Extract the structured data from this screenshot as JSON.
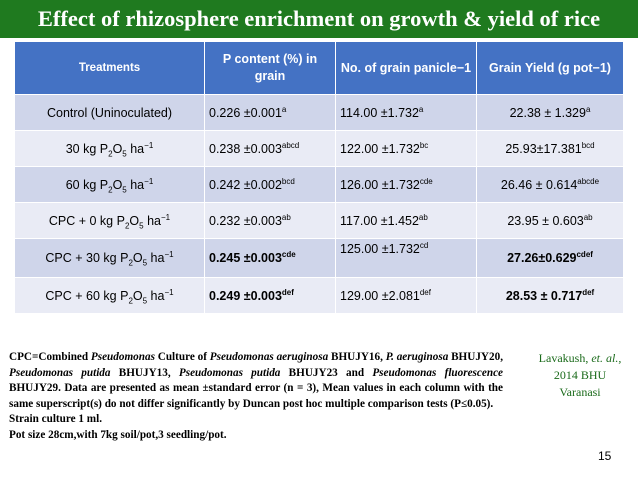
{
  "title": "Effect of rhizosphere enrichment on growth & yield of rice",
  "table": {
    "headers": [
      "Treatments",
      "P content (%) in grain",
      "No. of grain panicle−1",
      "Grain Yield (g pot−1)"
    ],
    "rows": [
      {
        "treatment_pre": "Control (Uninoculated)",
        "p_val": "0.226 ±0.001",
        "p_sup": "a",
        "grain_val": "114.00 ±1.732",
        "grain_sup": "a",
        "yield_val": "22.38 ± 1.329",
        "yield_sup": "a"
      },
      {
        "treatment_pre": "30 kg P",
        "p_val": "0.238 ±0.003",
        "p_sup": "abcd",
        "grain_val": "122.00 ±1.732",
        "grain_sup": "bc",
        "yield_val": "25.93±17.381",
        "yield_sup": "bcd"
      },
      {
        "treatment_pre": "60 kg P",
        "p_val": "0.242 ±0.002",
        "p_sup": "bcd",
        "grain_val": "126.00 ±1.732",
        "grain_sup": "cde",
        "yield_val": "26.46 ± 0.614",
        "yield_sup": "abcde"
      },
      {
        "treatment_pre": "CPC + 0 kg P",
        "p_val": "0.232 ±0.003",
        "p_sup": "ab",
        "grain_val": "117.00 ±1.452",
        "grain_sup": "ab",
        "yield_val": "23.95 ± 0.603",
        "yield_sup": "ab"
      },
      {
        "treatment_pre": "CPC + 30 kg P",
        "p_val": "0.245 ±0.003",
        "p_sup": "cde",
        "grain_val": "125.00 ±1.732",
        "grain_sup": "cd",
        "yield_val": "27.26±0.629",
        "yield_sup": "cdef"
      },
      {
        "treatment_pre": "CPC + 60 kg P",
        "p_val": "0.249 ±0.003",
        "p_sup": "def",
        "grain_val": "129.00 ±2.081",
        "grain_sup": "def",
        "yield_val": "28.53 ± 0.717",
        "yield_sup": "def"
      }
    ],
    "formula": {
      "sub2": "2",
      "o": "O",
      "sub5": "5",
      "unit": " ha",
      "exp": "−1"
    }
  },
  "footnote": {
    "p1": "CPC=Combined ",
    "p2": "Pseudomonas",
    "p3": " Culture of ",
    "p4": "Pseudomonas aeruginosa",
    "p5": " BHUJY16, ",
    "p6": "P. aeruginosa",
    "p7": " BHUJY20, ",
    "p8": "Pseudomonas putida",
    "p9": " BHUJY13, ",
    "p10": "Pseudomonas putida",
    "p11": " BHUJY23 and ",
    "p12": "Pseudomonas fluorescence",
    "p13": " BHUJY29. Data are presented as mean ±standard error (n = 3), Mean values in each column with the same superscript(s) do not differ significantly by Duncan post hoc multiple comparison tests (P≤0.05).",
    "line2": "Strain culture 1 ml.",
    "line3": "Pot size 28cm,with 7kg soil/pot,3 seedling/pot."
  },
  "credit": {
    "name": "Lavakush, ",
    "etal": "et. al.,",
    "line2": "2014 BHU",
    "line3": "Varanasi"
  },
  "page_number": "15",
  "colors": {
    "title_bg": "#1f7a1f",
    "header_bg": "#4472c4",
    "band_dark": "#cfd5ea",
    "band_light": "#e9ebf5",
    "highlight_blue": "#1f3fbf",
    "highlight_green": "#1a7a1a"
  }
}
